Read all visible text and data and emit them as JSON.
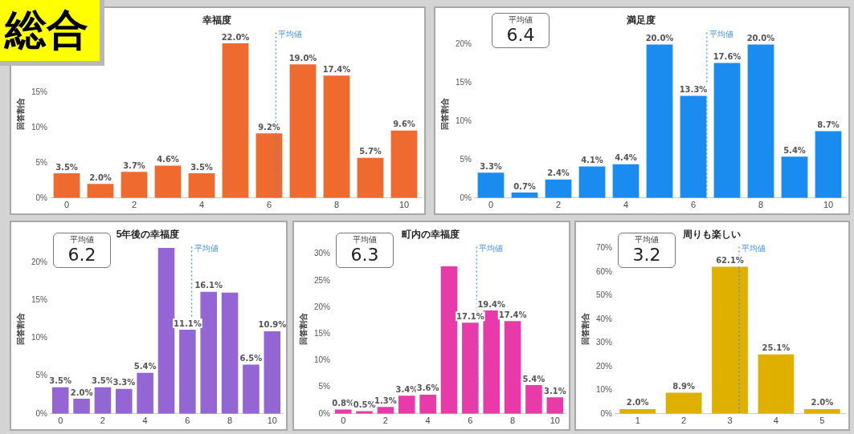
{
  "chart_data": [
    {
      "type": "bar",
      "title": "幸福度",
      "ylabel": "回答割合",
      "annotations": [
        "総合"
      ],
      "x": [
        0,
        1,
        2,
        3,
        4,
        5,
        6,
        7,
        8,
        9,
        10
      ],
      "xlim": [
        -0.5,
        10.5
      ],
      "xticks": [
        0,
        2,
        4,
        6,
        8,
        10
      ],
      "values": [
        3.5,
        2.0,
        3.7,
        4.6,
        3.5,
        22.0,
        9.2,
        19.0,
        17.4,
        5.7,
        9.6
      ],
      "color": "#ee6a2e",
      "value_labels": [
        "3.5%",
        "2.0%",
        "3.7%",
        "4.6%",
        "3.5%",
        "22.0%",
        "9.2%",
        "19.0%",
        "17.4%",
        "5.7%",
        "9.6%"
      ],
      "ylim": [
        0,
        24
      ],
      "yticks": [
        {
          "value": 0,
          "label": "0%"
        },
        {
          "value": 5,
          "label": "5%"
        },
        {
          "value": 10,
          "label": "10%"
        },
        {
          "value": 15,
          "label": "15%"
        }
      ],
      "ref_lines": [
        {
          "axis": "x",
          "value": 6.2,
          "label": "平均値",
          "color": "#3f8ee8",
          "line_style": "dotted"
        }
      ],
      "grid": false,
      "legend": false
    },
    {
      "type": "bar",
      "title": "満足度",
      "ylabel": "回答割合",
      "annotations": [
        "平均値",
        "6.4"
      ],
      "x": [
        0,
        1,
        2,
        3,
        4,
        5,
        6,
        7,
        8,
        9,
        10
      ],
      "xlim": [
        -0.5,
        10.5
      ],
      "xticks": [
        0,
        2,
        4,
        6,
        8,
        10
      ],
      "values": [
        3.3,
        0.7,
        2.4,
        4.1,
        4.4,
        20.0,
        13.3,
        17.6,
        20.0,
        5.4,
        8.7
      ],
      "color": "#1a8cf0",
      "value_labels": [
        "3.3%",
        "0.7%",
        "2.4%",
        "4.1%",
        "4.4%",
        "20.0%",
        "13.3%",
        "17.6%",
        "20.0%",
        "5.4%",
        "8.7%"
      ],
      "ylim": [
        0,
        22
      ],
      "yticks": [
        {
          "value": 0,
          "label": "0%"
        },
        {
          "value": 5,
          "label": "5%"
        },
        {
          "value": 10,
          "label": "10%"
        },
        {
          "value": 15,
          "label": "15%"
        },
        {
          "value": 20,
          "label": "20%"
        }
      ],
      "ref_lines": [
        {
          "axis": "x",
          "value": 6.4,
          "label": "平均値",
          "color": "#3f8ee8",
          "line_style": "dotted"
        }
      ],
      "grid": false,
      "legend": false
    },
    {
      "type": "bar",
      "title": "5年後の幸福度",
      "ylabel": "回答割合",
      "annotations": [
        "平均値",
        "6.2"
      ],
      "x": [
        0,
        1,
        2,
        3,
        4,
        5,
        6,
        7,
        8,
        9,
        10
      ],
      "xlim": [
        -0.5,
        10.5
      ],
      "xticks": [
        0,
        2,
        4,
        6,
        8,
        10
      ],
      "values": [
        3.5,
        2.0,
        3.5,
        3.3,
        5.4,
        21.9,
        11.1,
        16.1,
        16.0,
        6.5,
        10.9
      ],
      "color": "#9466d4",
      "value_labels": [
        "3.5%",
        "2.0%",
        "3.5%",
        "3.3%",
        "5.4%",
        null,
        "11.1%",
        "16.1%",
        null,
        "6.5%",
        "10.9%"
      ],
      "ylim": [
        0,
        22.5
      ],
      "yticks": [
        {
          "value": 0,
          "label": "0%"
        },
        {
          "value": 5,
          "label": "5%"
        },
        {
          "value": 10,
          "label": "10%"
        },
        {
          "value": 15,
          "label": "15%"
        },
        {
          "value": 20,
          "label": "20%"
        }
      ],
      "ref_lines": [
        {
          "axis": "x",
          "value": 6.2,
          "label": "平均値",
          "color": "#3f8ee8",
          "line_style": "dotted"
        }
      ],
      "grid": false,
      "legend": false
    },
    {
      "type": "bar",
      "title": "町内の幸福度",
      "ylabel": "回答割合",
      "annotations": [
        "平均値",
        "6.3"
      ],
      "x": [
        0,
        1,
        2,
        3,
        4,
        5,
        6,
        7,
        8,
        9,
        10
      ],
      "xlim": [
        -0.5,
        10.5
      ],
      "xticks": [
        0,
        2,
        4,
        6,
        8,
        10
      ],
      "values": [
        0.8,
        0.5,
        1.3,
        3.4,
        3.6,
        27.7,
        17.1,
        19.4,
        17.4,
        5.4,
        3.1
      ],
      "color": "#e83aa8",
      "value_labels": [
        "0.8%",
        "0.5%",
        "1.3%",
        "3.4%",
        "3.6%",
        null,
        "17.1%",
        "19.4%",
        "17.4%",
        "5.4%",
        "3.1%"
      ],
      "ylim": [
        0,
        32
      ],
      "yticks": [
        {
          "value": 0,
          "label": "0%"
        },
        {
          "value": 5,
          "label": "5%"
        },
        {
          "value": 10,
          "label": "10%"
        },
        {
          "value": 15,
          "label": "15%"
        },
        {
          "value": 20,
          "label": "20%"
        },
        {
          "value": 25,
          "label": "25%"
        },
        {
          "value": 30,
          "label": "30%"
        }
      ],
      "ref_lines": [
        {
          "axis": "x",
          "value": 6.3,
          "label": "平均値",
          "color": "#3f8ee8",
          "line_style": "dotted"
        }
      ],
      "grid": false,
      "legend": false
    },
    {
      "type": "bar",
      "title": "周りも楽しい",
      "ylabel": "回答割合",
      "annotations": [
        "平均値",
        "3.2"
      ],
      "x": [
        1,
        2,
        3,
        4,
        5
      ],
      "xlim": [
        0.5,
        5.5
      ],
      "xticks": [
        1,
        2,
        3,
        4,
        5
      ],
      "values": [
        2.0,
        8.9,
        62.1,
        25.1,
        2.0
      ],
      "color": "#e0b000",
      "value_labels": [
        "2.0%",
        "8.9%",
        "62.1%",
        "25.1%",
        "2.0%"
      ],
      "ylim": [
        0,
        72
      ],
      "yticks": [
        {
          "value": 0,
          "label": "0%"
        },
        {
          "value": 10,
          "label": "10%"
        },
        {
          "value": 20,
          "label": "20%"
        },
        {
          "value": 30,
          "label": "30%"
        },
        {
          "value": 40,
          "label": "40%"
        },
        {
          "value": 50,
          "label": "50%"
        },
        {
          "value": 60,
          "label": "60%"
        },
        {
          "value": 70,
          "label": "70%"
        }
      ],
      "ref_lines": [
        {
          "axis": "x",
          "value": 3.2,
          "label": "平均値",
          "color": "#3f8ee8",
          "line_style": "dotted"
        }
      ],
      "grid": false,
      "legend": false
    }
  ]
}
